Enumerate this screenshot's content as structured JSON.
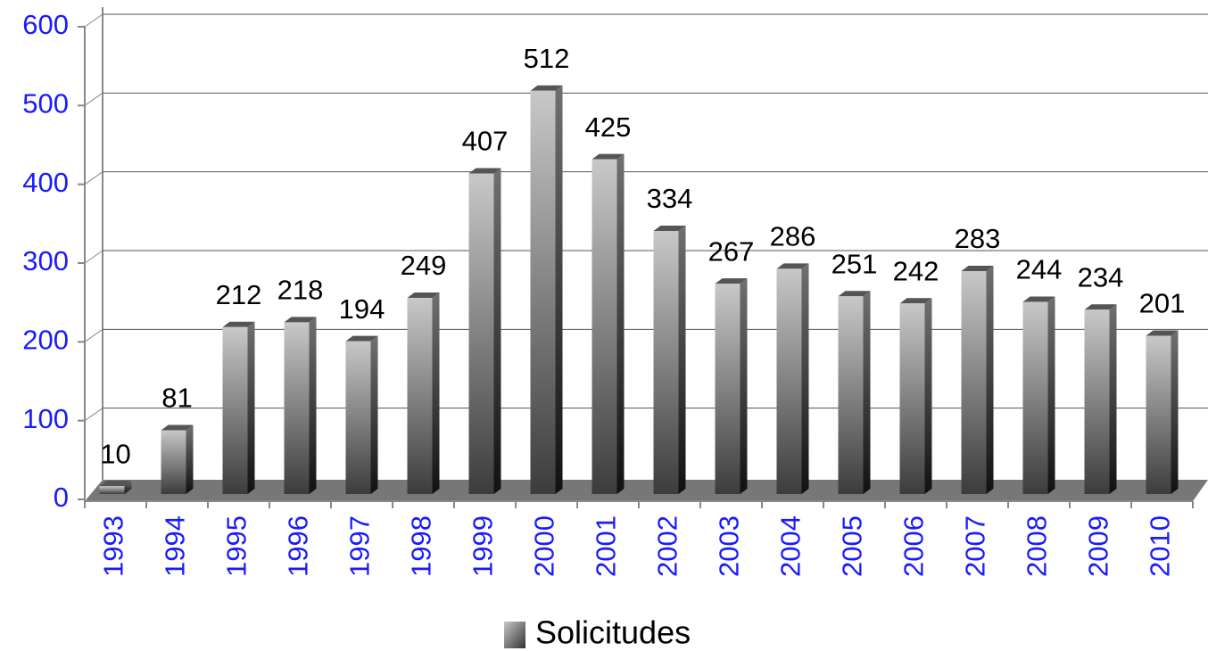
{
  "chart_data": {
    "type": "bar",
    "categories": [
      "1993",
      "1994",
      "1995",
      "1996",
      "1997",
      "1998",
      "1999",
      "2000",
      "2001",
      "2002",
      "2003",
      "2004",
      "2005",
      "2006",
      "2007",
      "2008",
      "2009",
      "2010"
    ],
    "series": [
      {
        "name": "Solicitudes",
        "color": "#8c8c8c",
        "values": [
          10,
          81,
          212,
          218,
          194,
          249,
          407,
          512,
          425,
          334,
          267,
          286,
          251,
          242,
          283,
          244,
          234,
          201
        ]
      }
    ],
    "ylim": [
      0,
      600
    ],
    "yticks": [
      0,
      100,
      200,
      300,
      400,
      500,
      600
    ],
    "grid": true,
    "legend": "bottom"
  }
}
